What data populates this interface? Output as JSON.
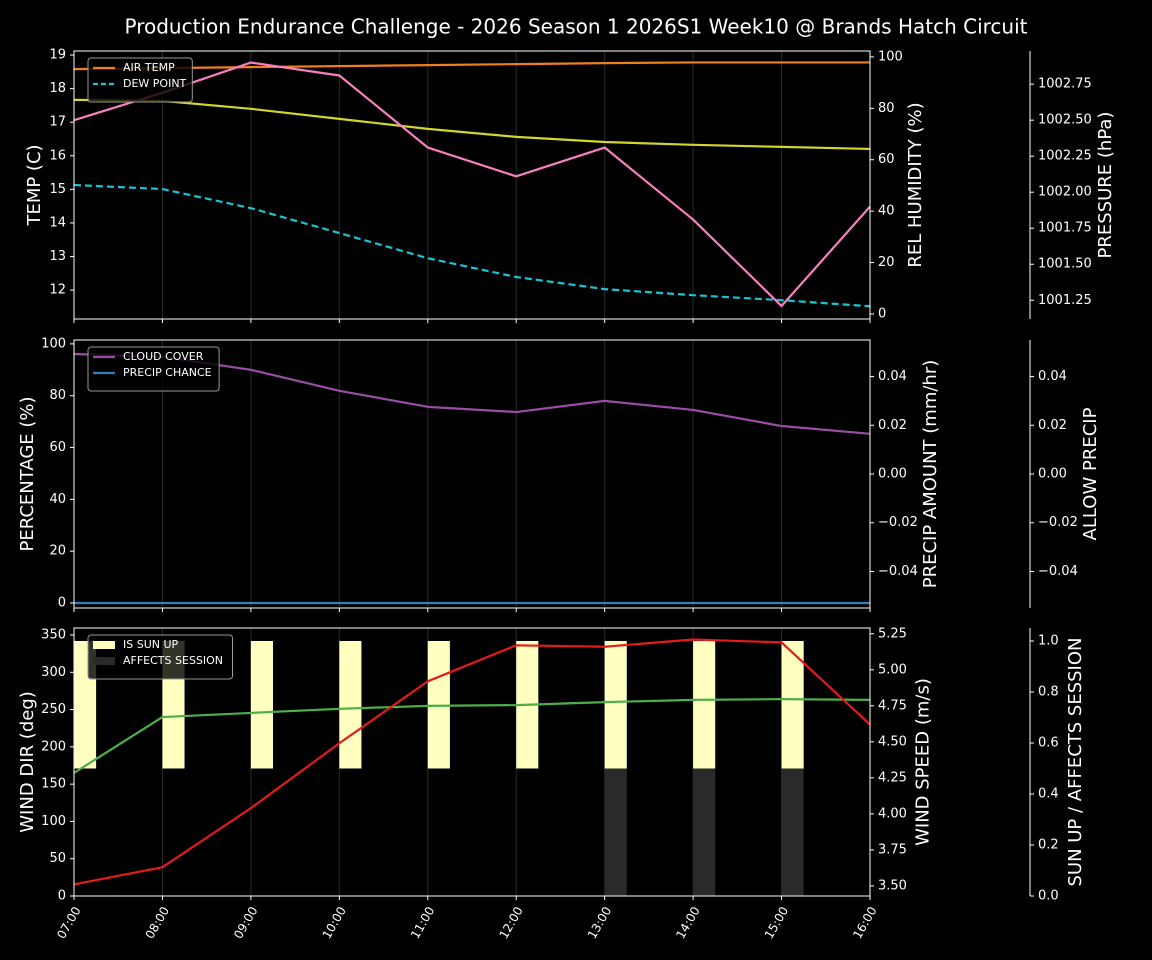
{
  "chart_data": {
    "type": "line",
    "title": "Production Endurance Challenge - 2026 Season 1 2026S1 Week10 @ Brands Hatch Circuit",
    "categories": [
      "07:00",
      "08:00",
      "09:00",
      "10:00",
      "11:00",
      "12:00",
      "13:00",
      "14:00",
      "15:00",
      "16:00"
    ],
    "grid": true,
    "panels": [
      {
        "ylabel": "TEMP (C)",
        "ylim": [
          11.14,
          19.12
        ],
        "yticks": [
          12,
          13,
          14,
          15,
          16,
          17,
          18,
          19
        ],
        "y2label": "REL HUMIDITY (%)",
        "y2label_color": "#d4d42a",
        "y2lim": [
          -1.95,
          102.3
        ],
        "y2ticks": [
          0,
          20,
          40,
          60,
          80,
          100
        ],
        "y3label": "PRESSURE (hPa)",
        "y3label_color": "#f781bf",
        "y3lim": [
          1001.12,
          1002.98
        ],
        "y3ticks": [
          1001.25,
          {
            "value": 1001.5,
            "label": "1001.50"
          },
          1001.75,
          {
            "value": 1002,
            "label": "1002.00"
          },
          1002.25,
          {
            "value": 1002.5,
            "label": "1002.50"
          },
          1002.75
        ],
        "legend": "upper left",
        "series": [
          {
            "name": "AIR TEMP",
            "color": "#f07f1e",
            "values": [
              18.58,
              18.61,
              18.64,
              18.67,
              18.7,
              18.73,
              18.76,
              18.78,
              18.78,
              18.78
            ]
          },
          {
            "name": "DEW POINT",
            "color": "#17c5d3",
            "dashed": true,
            "values": [
              15.13,
              15.01,
              14.44,
              13.7,
              12.95,
              12.39,
              12.03,
              11.85,
              11.7,
              11.52
            ]
          },
          {
            "color": "#d4d42a",
            "axis": "y2",
            "values": [
              83.3,
              82.9,
              79.8,
              75.9,
              72.0,
              68.9,
              66.9,
              65.8,
              65.0,
              64.2
            ]
          },
          {
            "color": "#f781bf",
            "axis": "y3",
            "values": [
              1002.5,
              1002.69,
              1002.9,
              1002.81,
              1002.31,
              1002.11,
              1002.31,
              1001.81,
              1001.21,
              1001.9
            ]
          }
        ]
      },
      {
        "ylabel": "PERCENTAGE (%)",
        "ylim": [
          -1.93,
          101.5
        ],
        "yticks": [
          0,
          20,
          40,
          60,
          80,
          100
        ],
        "y2label": "PRECIP AMOUNT (mm/hr)",
        "y2label_color": "#a0522d",
        "y2lim": [
          -0.055,
          0.055
        ],
        "y2ticks": [
          {
            "value": -0.04,
            "label": "−0.04"
          },
          {
            "value": -0.02,
            "label": "−0.02"
          },
          {
            "value": 0,
            "label": "0.00"
          },
          0.02,
          0.04
        ],
        "y3label": "ALLOW PRECIP",
        "y3lim": [
          -0.055,
          0.055
        ],
        "y3ticks": [
          {
            "value": -0.04,
            "label": "−0.04"
          },
          {
            "value": -0.02,
            "label": "−0.02"
          },
          {
            "value": 0,
            "label": "0.00"
          },
          0.02,
          0.04
        ],
        "legend": "upper left",
        "series": [
          {
            "name": "CLOUD COVER",
            "color": "#984ea3",
            "values": [
              96.1,
              95.0,
              90.0,
              81.9,
              75.7,
              73.7,
              78.0,
              74.5,
              68.3,
              65.3
            ]
          },
          {
            "name": "PRECIP CHANCE",
            "color": "#377eb8",
            "values": [
              0,
              0,
              0,
              0,
              0,
              0,
              0,
              0,
              0,
              0
            ]
          }
        ]
      },
      {
        "ylabel": "WIND DIR (deg)",
        "ylabel_color": "#4daf4a",
        "ylim": [
          0,
          359.4
        ],
        "yticks": [
          0,
          50,
          100,
          150,
          200,
          250,
          300,
          350
        ],
        "y2label": "WIND SPEED (m/s)",
        "y2label_color": "#e41a1c",
        "y2lim": [
          3.43,
          5.29
        ],
        "y2ticks": [
          {
            "value": 3.5,
            "label": "3.50"
          },
          3.75,
          {
            "value": 4,
            "label": "4.00"
          },
          4.25,
          {
            "value": 4.5,
            "label": "4.50"
          },
          4.75,
          {
            "value": 5,
            "label": "5.00"
          },
          5.25
        ],
        "y3label": "SUN UP / AFFECTS SESSION",
        "y3lim": [
          0,
          1.051
        ],
        "y3ticks": [
          {
            "value": 0,
            "label": "0.0"
          },
          0.2,
          0.4,
          0.6,
          0.8,
          {
            "value": 1,
            "label": "1.0"
          }
        ],
        "legend": "upper left",
        "series": [
          {
            "name": "IS SUN UP",
            "type": "bar",
            "color": "#ffffc0",
            "axis": "y3",
            "bar_bottom": 0.5,
            "values": [
              1,
              1,
              1,
              1,
              1,
              1,
              1,
              1,
              1,
              null
            ]
          },
          {
            "name": "AFFECTS SESSION",
            "type": "bar",
            "color": "#2a2a2a",
            "axis": "y3",
            "values": [
              0,
              0,
              0,
              0,
              0,
              0,
              0.5,
              0.5,
              0.5,
              null
            ]
          },
          {
            "color": "#4daf4a",
            "values": [
              165,
              240,
              245.5,
              251,
              255,
              256,
              260,
              263,
              264,
              263
            ]
          },
          {
            "color": "#e41a1c",
            "axis": "y2",
            "values": [
              3.51,
              3.63,
              4.04,
              4.49,
              4.92,
              5.17,
              5.16,
              5.21,
              5.19,
              4.62
            ]
          }
        ]
      }
    ]
  }
}
